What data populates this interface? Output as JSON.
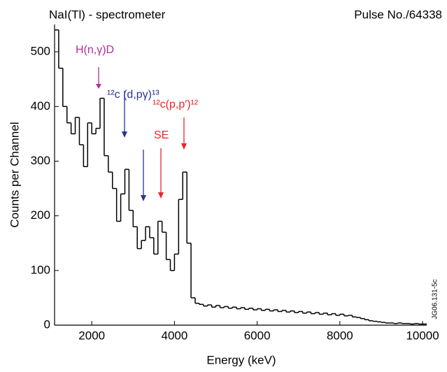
{
  "chart_data": {
    "type": "histogram",
    "title": "NaI(Tl) - spectrometer",
    "subtitle": "Pulse No./64338",
    "x_label": "Energy (keV)",
    "y_label": "Counts per Channel",
    "figure_id": "JG06.131-5c",
    "color": "#000000",
    "bins": [
      1100,
      1200,
      1300,
      1400,
      1500,
      1600,
      1700,
      1800,
      1900,
      2000,
      2100,
      2200,
      2300,
      2400,
      2500,
      2600,
      2700,
      2800,
      2900,
      3000,
      3100,
      3200,
      3300,
      3400,
      3500,
      3600,
      3700,
      3800,
      3900,
      4000,
      4100,
      4200,
      4300,
      4400,
      4500,
      4600,
      4700,
      4800,
      4900,
      5000,
      5100,
      5200,
      5300,
      5400,
      5500,
      5600,
      5700,
      5800,
      5900,
      6000,
      6100,
      6200,
      6300,
      6400,
      6500,
      6600,
      6700,
      6800,
      6900,
      7000,
      7100,
      7200,
      7300,
      7400,
      7500,
      7600,
      7700,
      7800,
      7900,
      8000,
      8100,
      8200,
      8300,
      8400,
      8500,
      8600,
      8700,
      8800,
      8900,
      9000,
      9100,
      9200,
      9300,
      9400,
      9500,
      9600,
      9700,
      9800,
      9900,
      10000,
      10100
    ],
    "counts": [
      540,
      470,
      400,
      370,
      350,
      380,
      330,
      290,
      370,
      350,
      360,
      415,
      310,
      280,
      250,
      190,
      240,
      285,
      210,
      180,
      140,
      155,
      180,
      160,
      130,
      190,
      170,
      120,
      100,
      130,
      230,
      280,
      150,
      50,
      40,
      38,
      35,
      37,
      33,
      36,
      32,
      34,
      31,
      33,
      30,
      32,
      29,
      31,
      28,
      30,
      27,
      29,
      26,
      28,
      25,
      27,
      24,
      26,
      23,
      25,
      22,
      24,
      21,
      23,
      20,
      22,
      19,
      21,
      18,
      20,
      17,
      18,
      15,
      14,
      12,
      10,
      8,
      7,
      6,
      5,
      4,
      4,
      3,
      4,
      3,
      3,
      2,
      3,
      2,
      2
    ],
    "xlim": [
      1100,
      10100
    ],
    "ylim": [
      0,
      550
    ],
    "xticks": [
      2000,
      4000,
      6000,
      8000,
      10000
    ],
    "yticks": [
      0,
      100,
      200,
      300,
      400,
      500
    ],
    "annotations": [
      {
        "text": "H(n,γ)D",
        "color": "#b0309a"
      },
      {
        "text": "¹²c (d,pγ)¹³",
        "color": "#2e3192"
      },
      {
        "text": "¹²c(p,p′)¹²",
        "color": "#e5262b"
      },
      {
        "text": "SE",
        "color": "#e5262b"
      }
    ]
  }
}
